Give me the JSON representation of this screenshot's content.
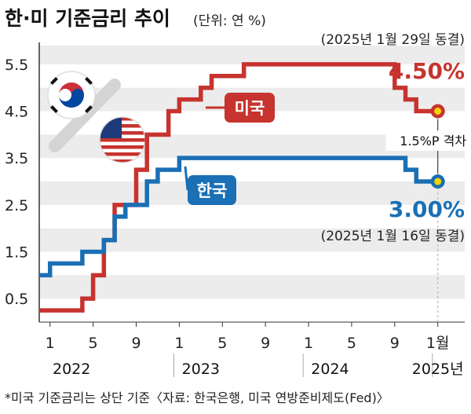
{
  "title": "한·미 기준금리 추이",
  "unit": "(단위: 연 %)",
  "footnote": "*미국 기준금리는 상단 기준〈자료: 한국은행, 미국 연방준비제도(Fed)〉",
  "chart_data": {
    "type": "line",
    "title": "한·미 기준금리 추이",
    "ylim": [
      0,
      5.9
    ],
    "y_ticks": [
      "0.5",
      "1.5",
      "2.5",
      "3.5",
      "4.5",
      "5.5"
    ],
    "y_tick_values": [
      0.5,
      1.5,
      2.5,
      3.5,
      4.5,
      5.5
    ],
    "x_ticks": [
      {
        "label": "1",
        "t": 1
      },
      {
        "label": "5",
        "t": 5
      },
      {
        "label": "9",
        "t": 9
      },
      {
        "label": "1",
        "t": 13
      },
      {
        "label": "5",
        "t": 17
      },
      {
        "label": "9",
        "t": 21
      },
      {
        "label": "1",
        "t": 25
      },
      {
        "label": "5",
        "t": 29
      },
      {
        "label": "9",
        "t": 33
      },
      {
        "label": "1월",
        "t": 37
      }
    ],
    "years": [
      {
        "label": "2022",
        "t": 3
      },
      {
        "label": "2023",
        "t": 15
      },
      {
        "label": "2024",
        "t": 27
      },
      {
        "label": "2025년",
        "t": 37
      }
    ],
    "x_range": [
      0,
      39.5
    ],
    "grid": true,
    "series": [
      {
        "name": "미국",
        "color": "#c7332e",
        "points": [
          [
            0,
            0.25
          ],
          [
            4,
            0.5
          ],
          [
            5,
            1.0
          ],
          [
            6,
            1.75
          ],
          [
            7,
            2.5
          ],
          [
            9,
            3.25
          ],
          [
            10,
            4.0
          ],
          [
            12,
            4.5
          ],
          [
            13,
            4.75
          ],
          [
            15,
            5.0
          ],
          [
            16,
            5.25
          ],
          [
            19,
            5.5
          ],
          [
            33,
            5.0
          ],
          [
            34,
            4.75
          ],
          [
            35,
            4.5
          ],
          [
            37,
            4.5
          ]
        ],
        "end_value_label": "4.50%",
        "end_note": "(2025년 1월 29일 동결)"
      },
      {
        "name": "한국",
        "color": "#1a6fb5",
        "points": [
          [
            0,
            1.0
          ],
          [
            1,
            1.25
          ],
          [
            4,
            1.5
          ],
          [
            6,
            1.75
          ],
          [
            7,
            2.25
          ],
          [
            8,
            2.5
          ],
          [
            10,
            3.0
          ],
          [
            11,
            3.25
          ],
          [
            13,
            3.5
          ],
          [
            34,
            3.25
          ],
          [
            35,
            3.0
          ],
          [
            37,
            3.0
          ]
        ],
        "end_value_label": "3.00%",
        "end_note": "(2025년 1월 16일 동결)"
      }
    ],
    "gap_annotation": "1.5%P 격차"
  }
}
